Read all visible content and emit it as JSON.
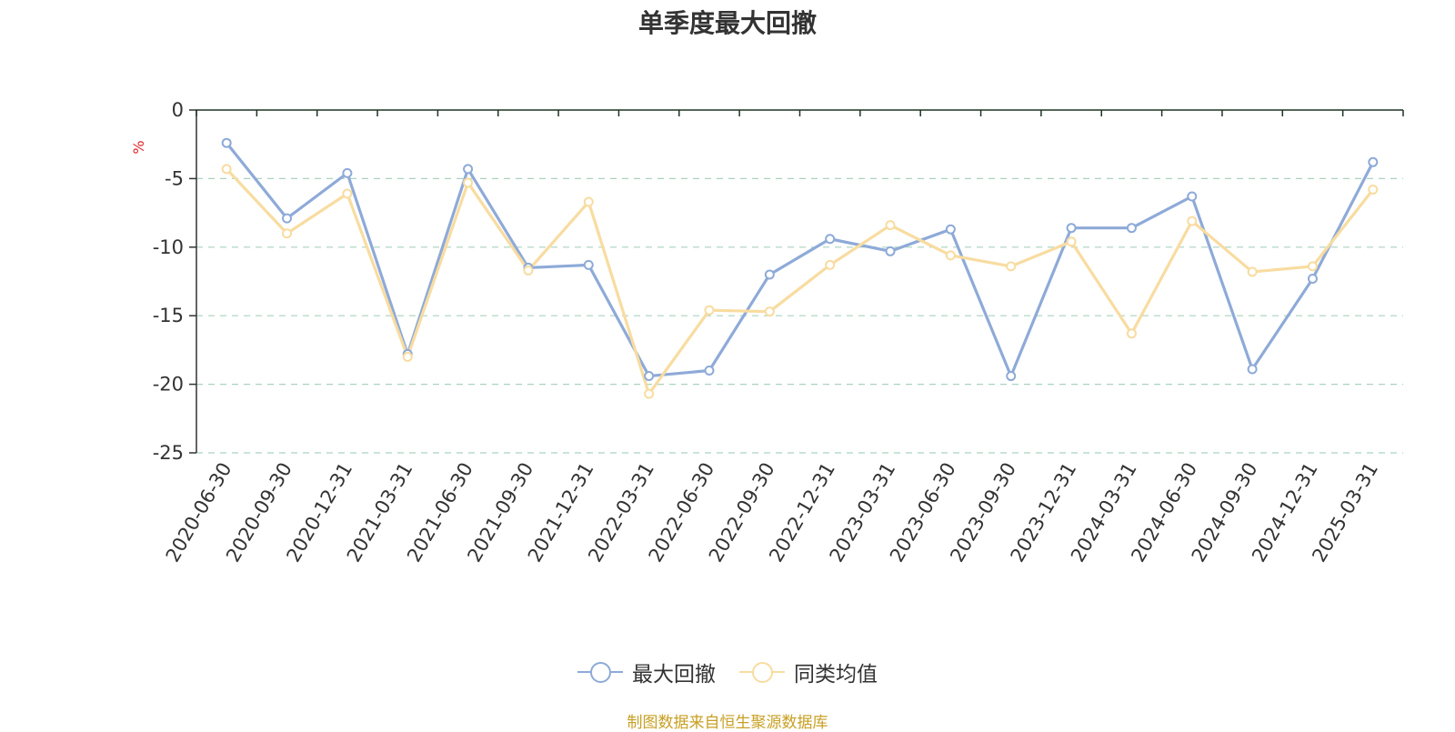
{
  "chart_data": {
    "type": "line",
    "title": "单季度最大回撤",
    "ylabel": "%",
    "xlabel": "",
    "ylim": [
      -25,
      0
    ],
    "yticks": [
      0,
      -5,
      -10,
      -15,
      -20,
      -25
    ],
    "grid": "horizontal dashed",
    "legend_position": "bottom-center",
    "categories": [
      "2020-06-30",
      "2020-09-30",
      "2020-12-31",
      "2021-03-31",
      "2021-06-30",
      "2021-09-30",
      "2021-12-31",
      "2022-03-31",
      "2022-06-30",
      "2022-09-30",
      "2022-12-31",
      "2023-03-31",
      "2023-06-30",
      "2023-09-30",
      "2023-12-31",
      "2024-03-31",
      "2024-06-30",
      "2024-09-30",
      "2024-12-31",
      "2025-03-31"
    ],
    "series": [
      {
        "name": "最大回撤",
        "color": "#8eaad8",
        "values": [
          -2.4,
          -7.9,
          -4.6,
          -17.8,
          -4.3,
          -11.5,
          -11.3,
          -19.4,
          -19.0,
          -12.0,
          -9.4,
          -10.3,
          -8.7,
          -19.4,
          -8.6,
          -8.6,
          -6.3,
          -18.9,
          -12.3,
          -3.8
        ]
      },
      {
        "name": "同类均值",
        "color": "#f8dca0",
        "values": [
          -4.3,
          -9.0,
          -6.1,
          -18.0,
          -5.3,
          -11.7,
          -6.7,
          -20.7,
          -14.6,
          -14.7,
          -11.3,
          -8.4,
          -10.6,
          -11.4,
          -9.6,
          -16.3,
          -8.1,
          -11.8,
          -11.4,
          -5.8
        ]
      }
    ]
  },
  "legend": {
    "items": [
      {
        "label": "最大回撤",
        "color": "#8eaad8"
      },
      {
        "label": "同类均值",
        "color": "#f8dca0"
      }
    ]
  },
  "footer": {
    "source": "制图数据来自恒生聚源数据库"
  }
}
